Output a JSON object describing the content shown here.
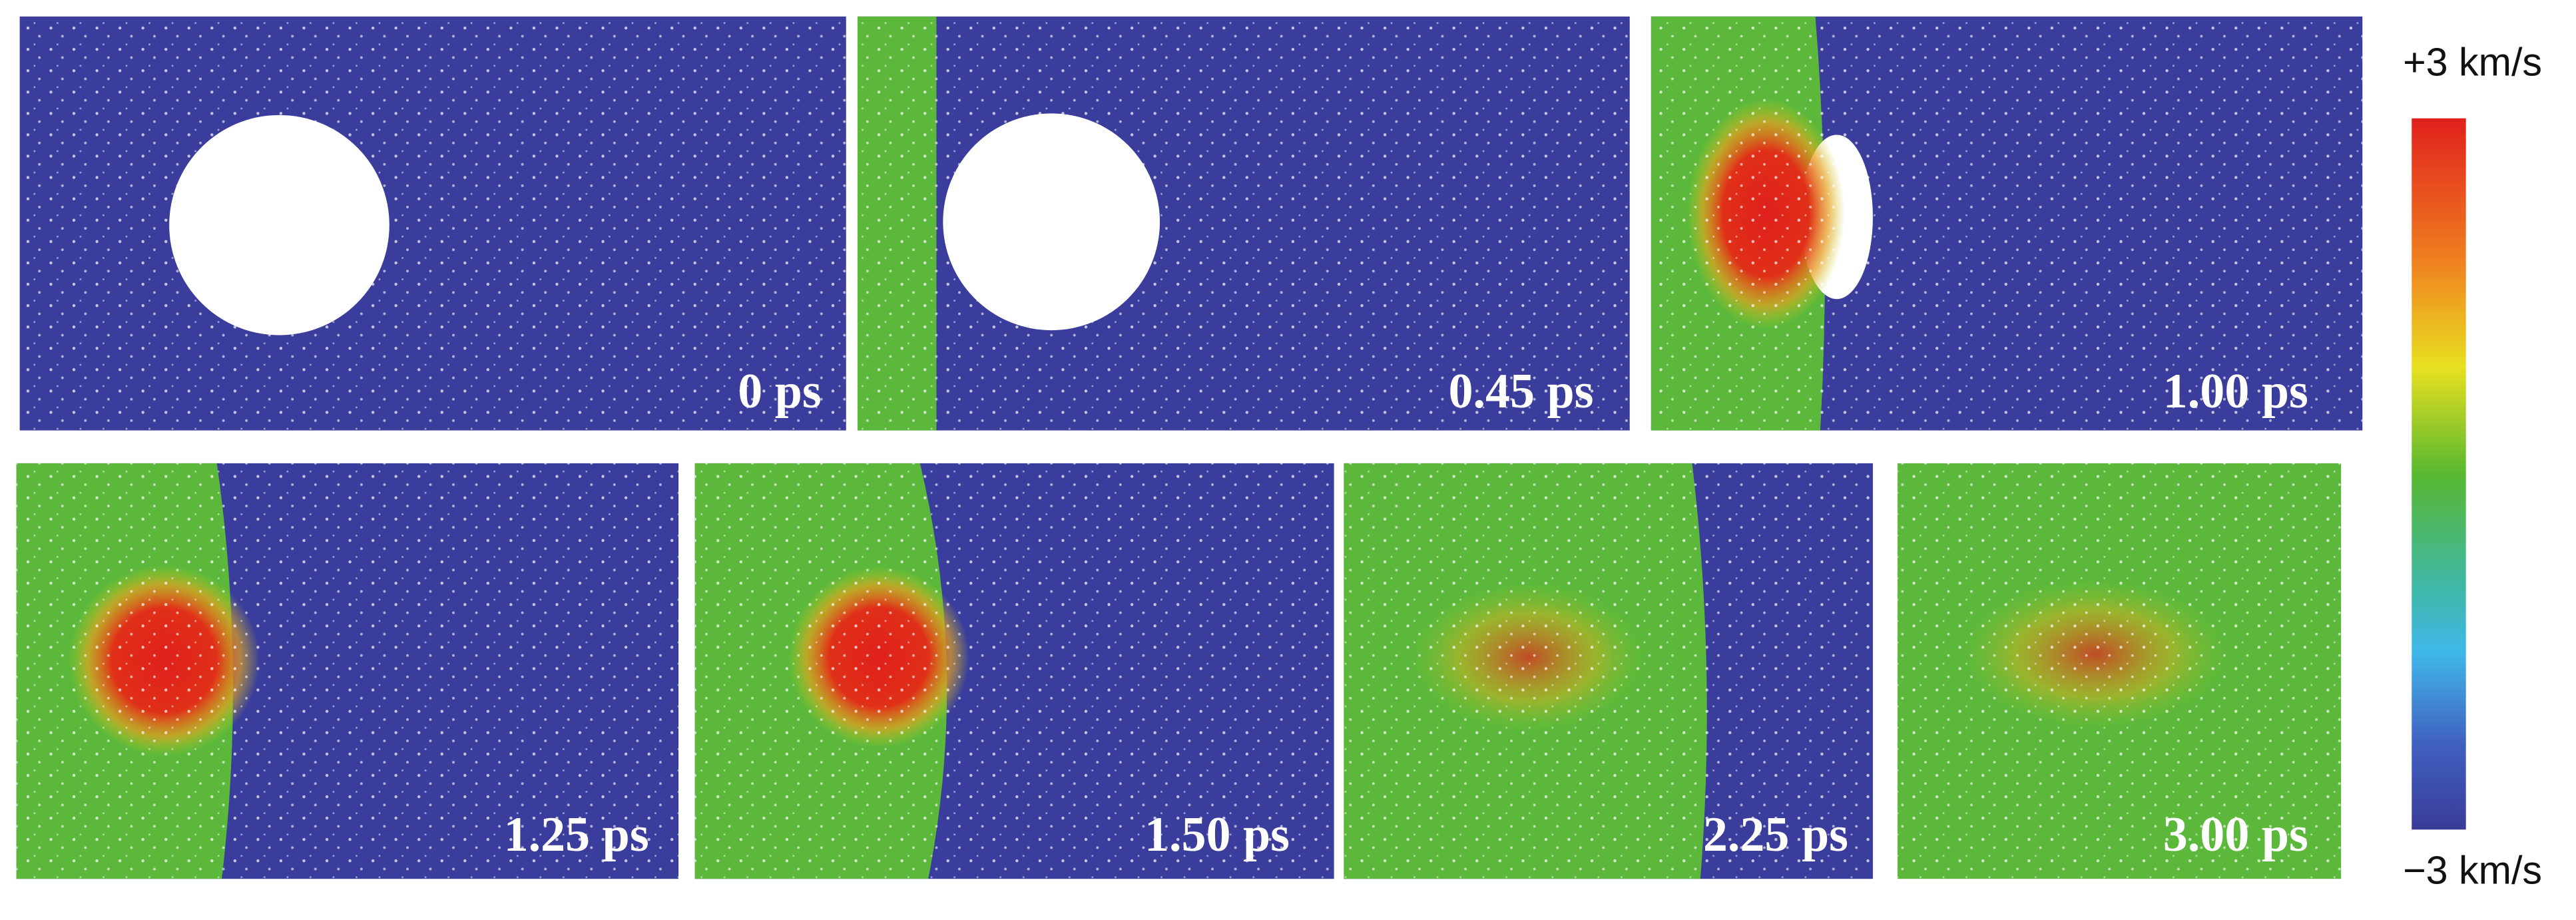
{
  "panels": [
    {
      "label": "0 ps"
    },
    {
      "label": "0.45 ps"
    },
    {
      "label": "1.00 ps"
    },
    {
      "label": "1.25 ps"
    },
    {
      "label": "1.50 ps"
    },
    {
      "label": "2.25 ps"
    },
    {
      "label": "3.00 ps"
    }
  ],
  "colorbar": {
    "max_label": "+3 km/s",
    "min_label": "−3 km/s"
  }
}
